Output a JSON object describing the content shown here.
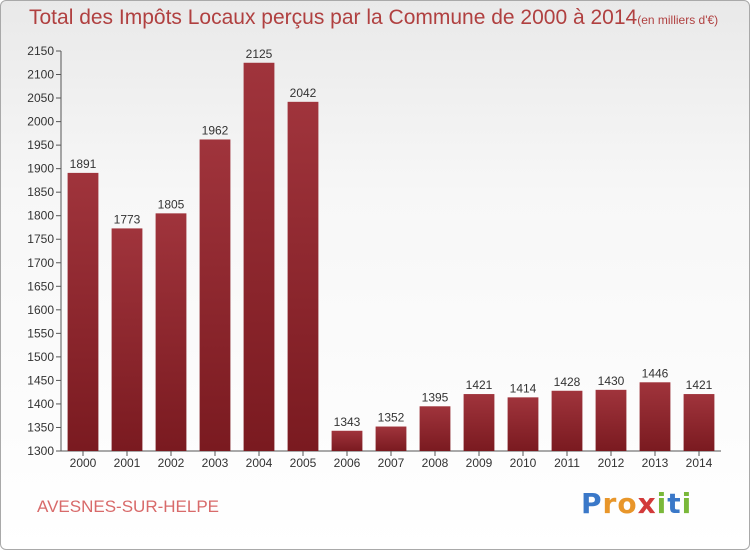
{
  "title": "Total des Impôts Locaux perçus par la Commune de 2000 à 2014",
  "subtitle": "(en milliers d'€)",
  "commune": "AVESNES-SUR-HELPE",
  "logo": {
    "letters": [
      "P",
      "r",
      "o",
      "x",
      "i",
      "t",
      "i"
    ],
    "colors": [
      "#3a78c8",
      "#e8962a",
      "#e8962a",
      "#d23a3a",
      "#7ab83a",
      "#3a78c8",
      "#7ab83a"
    ]
  },
  "colors": {
    "bar": "#7a1a20",
    "bar_light": "#a0343c",
    "axis": "#555555",
    "grid": "#d0d0d0"
  },
  "chart_data": {
    "type": "bar",
    "categories": [
      "2000",
      "2001",
      "2002",
      "2003",
      "2004",
      "2005",
      "2006",
      "2007",
      "2008",
      "2009",
      "2010",
      "2011",
      "2012",
      "2013",
      "2014"
    ],
    "values": [
      1891,
      1773,
      1805,
      1962,
      2125,
      2042,
      1343,
      1352,
      1395,
      1421,
      1414,
      1428,
      1430,
      1446,
      1421
    ],
    "title": "Total des Impôts Locaux perçus par la Commune de 2000 à 2014",
    "xlabel": "",
    "ylabel": "",
    "ylim": [
      1300,
      2150
    ],
    "yticks": [
      1300,
      1350,
      1400,
      1450,
      1500,
      1550,
      1600,
      1650,
      1700,
      1750,
      1800,
      1850,
      1900,
      1950,
      2000,
      2050,
      2100,
      2150
    ],
    "grid": false,
    "legend": "none"
  }
}
